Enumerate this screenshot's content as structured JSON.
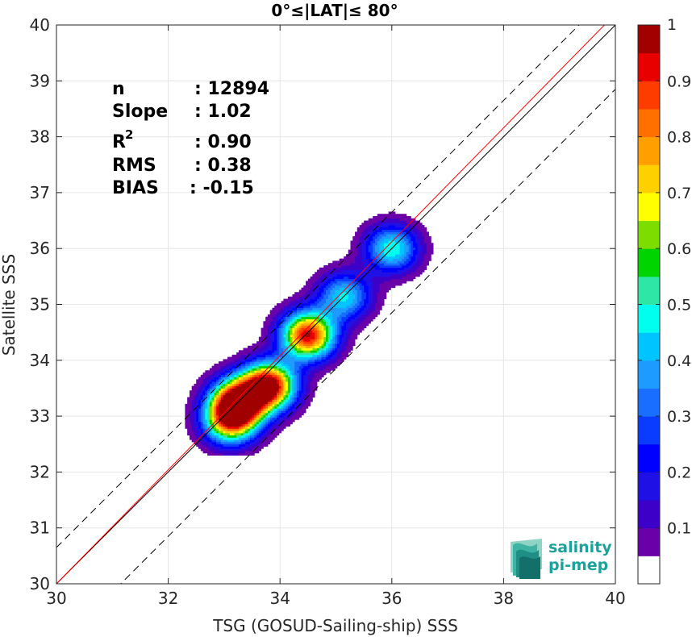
{
  "chart_data": {
    "type": "heatmap",
    "title": "0°≤|LAT|≤ 80°",
    "xlabel": "TSG (GOSUD-Sailing-ship) SSS",
    "ylabel": "Satellite SSS",
    "xlim": [
      30,
      40
    ],
    "ylim": [
      30,
      40
    ],
    "xticks": [
      "30",
      "32",
      "34",
      "36",
      "38",
      "40"
    ],
    "yticks": [
      "30",
      "31",
      "32",
      "33",
      "34",
      "35",
      "36",
      "37",
      "38",
      "39",
      "40"
    ],
    "grid": true,
    "stats": {
      "n_label": "n",
      "n_value": ": 12894",
      "slope_label": "Slope",
      "slope_value": ": 1.02",
      "r2_label": "R",
      "r2_sup": "2",
      "r2_value": ": 0.90",
      "rms_label": "RMS",
      "rms_value": ": 0.38",
      "bias_label": "BIAS",
      "bias_value": ": -0.15"
    },
    "lines": [
      {
        "name": "identity",
        "color": "#000000",
        "style": "solid",
        "slope": 1,
        "intercept": 0
      },
      {
        "name": "upper-bound",
        "color": "#000000",
        "style": "dashed",
        "slope": 1,
        "intercept": 0.65
      },
      {
        "name": "lower-bound",
        "color": "#000000",
        "style": "dashed",
        "slope": 1,
        "intercept": -1.15
      },
      {
        "name": "regression",
        "color": "#ff0000",
        "style": "solid",
        "slope": 1.02,
        "intercept": -0.6
      }
    ],
    "density_peaks": [
      {
        "x": 33.25,
        "y": 33.25,
        "level": 1.0
      },
      {
        "x": 33.1,
        "y": 32.9,
        "level": 0.65
      },
      {
        "x": 33.8,
        "y": 33.55,
        "level": 1.0
      },
      {
        "x": 34.5,
        "y": 34.45,
        "level": 0.95
      },
      {
        "x": 35.15,
        "y": 35.15,
        "level": 0.45
      },
      {
        "x": 36.0,
        "y": 36.0,
        "level": 0.5
      }
    ],
    "colorbar": {
      "ticks": [
        "0.1",
        "0.2",
        "0.3",
        "0.4",
        "0.5",
        "0.6",
        "0.7",
        "0.8",
        "0.9",
        "1"
      ],
      "levels": 20,
      "colors": [
        "#ffffff",
        "#6a00a8",
        "#3d00c8",
        "#1f10e6",
        "#0000ff",
        "#0a3cff",
        "#1a6eff",
        "#1e9bff",
        "#00c4ff",
        "#00ffef",
        "#2ee6a6",
        "#00d400",
        "#7ddc00",
        "#ffff00",
        "#ffd000",
        "#ffa000",
        "#ff7000",
        "#ff3c00",
        "#e80000",
        "#a00000"
      ]
    }
  },
  "logo": {
    "line1": "salinity",
    "line2": "pi-mep"
  }
}
